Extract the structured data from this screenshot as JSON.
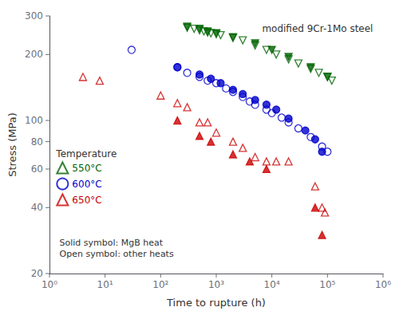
{
  "chart_data": {
    "type": "scatter",
    "xlabel": "Time to rupture (h)",
    "ylabel": "Stress (MPa)",
    "annotations": [
      "modified 9Cr-1Mo steel",
      "Solid symbol: MgB heat\nOpen symbol: other heats"
    ],
    "legend_title": "Temperature",
    "legend": "lower left",
    "log": true,
    "grid": false,
    "xlim": [
      1,
      1000000
    ],
    "ylim": [
      20,
      300
    ],
    "xticks": [
      {
        "value": 1,
        "label": "10⁰"
      },
      {
        "value": 10,
        "label": "10¹"
      },
      {
        "value": 100,
        "label": "10²"
      },
      {
        "value": 1000,
        "label": "10³"
      },
      {
        "value": 10000,
        "label": "10⁴"
      },
      {
        "value": 100000,
        "label": "10⁵"
      },
      {
        "value": 1000000,
        "label": "10⁶"
      }
    ],
    "yticks": [
      20,
      40,
      60,
      80,
      100,
      200,
      300
    ],
    "series": [
      {
        "name": "550°C",
        "color": "#006400",
        "marker": "open-triangle-down",
        "x": [
          300,
          400,
          500,
          600,
          700,
          800,
          1000,
          1200,
          2000,
          3000,
          5000,
          8000,
          12000,
          20000,
          30000,
          50000,
          70000,
          100000,
          120000
        ],
        "values": [
          265,
          262,
          258,
          255,
          252,
          250,
          248,
          245,
          238,
          232,
          220,
          210,
          200,
          190,
          182,
          172,
          165,
          158,
          152
        ]
      },
      {
        "name": "550°C",
        "color": "#006400",
        "marker": "solid-triangle-down",
        "x": [
          300,
          500,
          700,
          1000,
          2000,
          5000,
          10000,
          20000,
          50000,
          100000
        ],
        "values": [
          268,
          262,
          255,
          250,
          240,
          225,
          210,
          195,
          175,
          158
        ]
      },
      {
        "name": "600°C",
        "color": "#0000CD",
        "marker": "open-circle",
        "x": [
          30,
          200,
          300,
          500,
          700,
          1000,
          1500,
          2000,
          3000,
          4000,
          5000,
          8000,
          10000,
          15000,
          20000,
          30000,
          50000,
          80000,
          100000
        ],
        "values": [
          210,
          175,
          165,
          158,
          152,
          148,
          140,
          135,
          128,
          122,
          118,
          112,
          108,
          103,
          98,
          92,
          84,
          76,
          72
        ]
      },
      {
        "name": "600°C",
        "color": "#0000CD",
        "marker": "solid-circle",
        "x": [
          200,
          500,
          800,
          1200,
          2000,
          3000,
          5000,
          8000,
          12000,
          20000,
          40000,
          60000,
          80000
        ],
        "values": [
          175,
          162,
          155,
          148,
          138,
          132,
          124,
          118,
          112,
          102,
          90,
          82,
          72
        ]
      },
      {
        "name": "650°C",
        "color": "#CC0000",
        "marker": "open-triangle-up",
        "x": [
          4,
          8,
          100,
          200,
          300,
          500,
          700,
          1000,
          2000,
          3000,
          5000,
          8000,
          12000,
          20000,
          60000,
          80000,
          90000
        ],
        "values": [
          158,
          152,
          130,
          120,
          115,
          98,
          98,
          88,
          80,
          75,
          68,
          65,
          65,
          65,
          50,
          40,
          38
        ]
      },
      {
        "name": "650°C",
        "color": "#CC0000",
        "marker": "solid-triangle-up",
        "x": [
          200,
          500,
          800,
          2000,
          4000,
          8000,
          60000,
          80000
        ],
        "values": [
          100,
          85,
          80,
          70,
          65,
          60,
          40,
          30
        ]
      }
    ]
  }
}
